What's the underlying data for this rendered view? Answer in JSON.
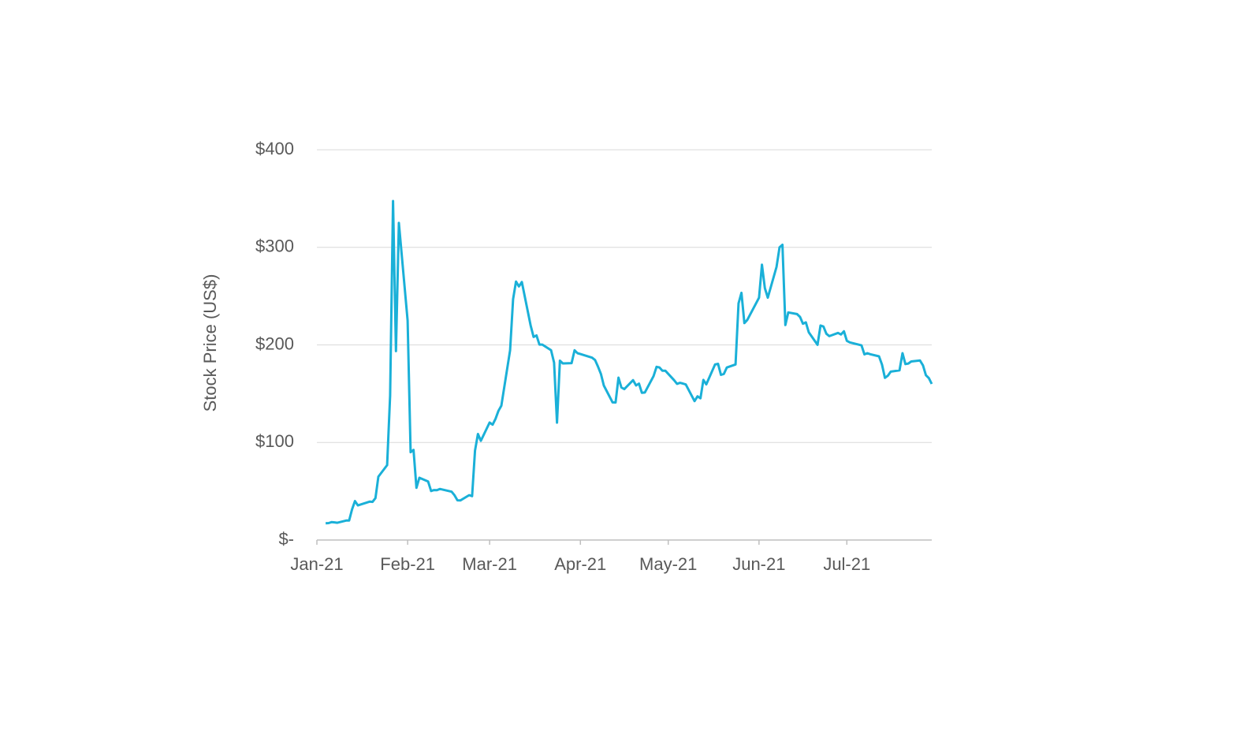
{
  "chart_data": {
    "type": "line",
    "y_axis_label": "Stock Price (US$)",
    "x": [
      3,
      4,
      5,
      6,
      7,
      10,
      11,
      12,
      13,
      14,
      18,
      19,
      20,
      21,
      24,
      25,
      26,
      27,
      28,
      31,
      32,
      33,
      34,
      35,
      38,
      39,
      40,
      41,
      42,
      46,
      47,
      48,
      49,
      52,
      53,
      54,
      55,
      56,
      59,
      60,
      61,
      62,
      63,
      66,
      67,
      68,
      69,
      70,
      73,
      74,
      75,
      76,
      77,
      80,
      81,
      82,
      83,
      84,
      87,
      88,
      89,
      90,
      94,
      95,
      96,
      97,
      98,
      101,
      102,
      103,
      104,
      105,
      108,
      109,
      110,
      111,
      112,
      115,
      116,
      117,
      118,
      119,
      122,
      123,
      124,
      125,
      126,
      129,
      130,
      131,
      132,
      133,
      136,
      137,
      138,
      139,
      140,
      143,
      144,
      145,
      146,
      147,
      151,
      152,
      153,
      154,
      157,
      158,
      159,
      160,
      161,
      164,
      165,
      166,
      167,
      168,
      171,
      172,
      173,
      174,
      175,
      178,
      179,
      180,
      181,
      182,
      186,
      187,
      188,
      189,
      192,
      193,
      194,
      195,
      196,
      199,
      200,
      201,
      202,
      203,
      206,
      207,
      208,
      209,
      210
    ],
    "series": [
      {
        "name": null,
        "color": "#1ab0d8",
        "values": [
          17.25,
          17.37,
          18.36,
          18.08,
          17.69,
          19.94,
          19.95,
          31.4,
          39.91,
          35.5,
          39.36,
          39.12,
          43.03,
          65.01,
          76.79,
          147.98,
          347.51,
          193.6,
          325,
          225,
          90,
          92.4,
          53.5,
          63.8,
          60,
          50.3,
          51.2,
          51.1,
          52.4,
          49.5,
          45.9,
          40.7,
          40.6,
          46,
          44.97,
          91.7,
          108.7,
          101.7,
          120.4,
          118.2,
          124.2,
          132.4,
          137.7,
          194.5,
          246.9,
          265,
          260,
          264.5,
          220.1,
          208.2,
          209.8,
          200.3,
          200.3,
          194.5,
          181.8,
          120.3,
          183.8,
          181,
          181.3,
          194.5,
          191.5,
          190.6,
          186.9,
          184.5,
          177.8,
          170.3,
          158.4,
          141.1,
          140.99,
          166.5,
          156.4,
          154.7,
          163.9,
          158.5,
          160.3,
          150.9,
          151.2,
          168,
          177.5,
          176.9,
          173.6,
          173.6,
          163.9,
          160.1,
          161.1,
          160.4,
          159.4,
          142.4,
          147.3,
          145.3,
          164.1,
          159.6,
          180,
          180.6,
          169.3,
          170.3,
          176.8,
          180,
          242.6,
          253.4,
          222.4,
          225.6,
          248.4,
          282.2,
          258.2,
          248.4,
          280,
          300,
          302.6,
          220.4,
          233.3,
          231.6,
          228.7,
          221.7,
          223.1,
          212.9,
          200.1,
          219.9,
          218.8,
          211.5,
          209,
          212.3,
          210.7,
          214,
          204.2,
          202.6,
          199.5,
          190.3,
          191.5,
          190.5,
          188.3,
          179.8,
          166.2,
          168.4,
          172.6,
          173.9,
          191.5,
          180.4,
          180.9,
          183,
          184,
          179,
          169,
          166,
          160
        ]
      }
    ],
    "xlim": [
      0,
      210
    ],
    "xticks": [
      {
        "value": 0,
        "label": "Jan-21"
      },
      {
        "value": 31,
        "label": "Feb-21"
      },
      {
        "value": 59,
        "label": "Mar-21"
      },
      {
        "value": 90,
        "label": "Apr-21"
      },
      {
        "value": 120,
        "label": "May-21"
      },
      {
        "value": 151,
        "label": "Jun-21"
      },
      {
        "value": 181,
        "label": "Jul-21"
      }
    ],
    "ylim": [
      0,
      400
    ],
    "yticks": [
      {
        "value": 0,
        "label": "$-"
      },
      {
        "value": 100,
        "label": "$100"
      },
      {
        "value": 200,
        "label": "$200"
      },
      {
        "value": 300,
        "label": "$300"
      },
      {
        "value": 400,
        "label": "$400"
      }
    ],
    "grid": true
  }
}
